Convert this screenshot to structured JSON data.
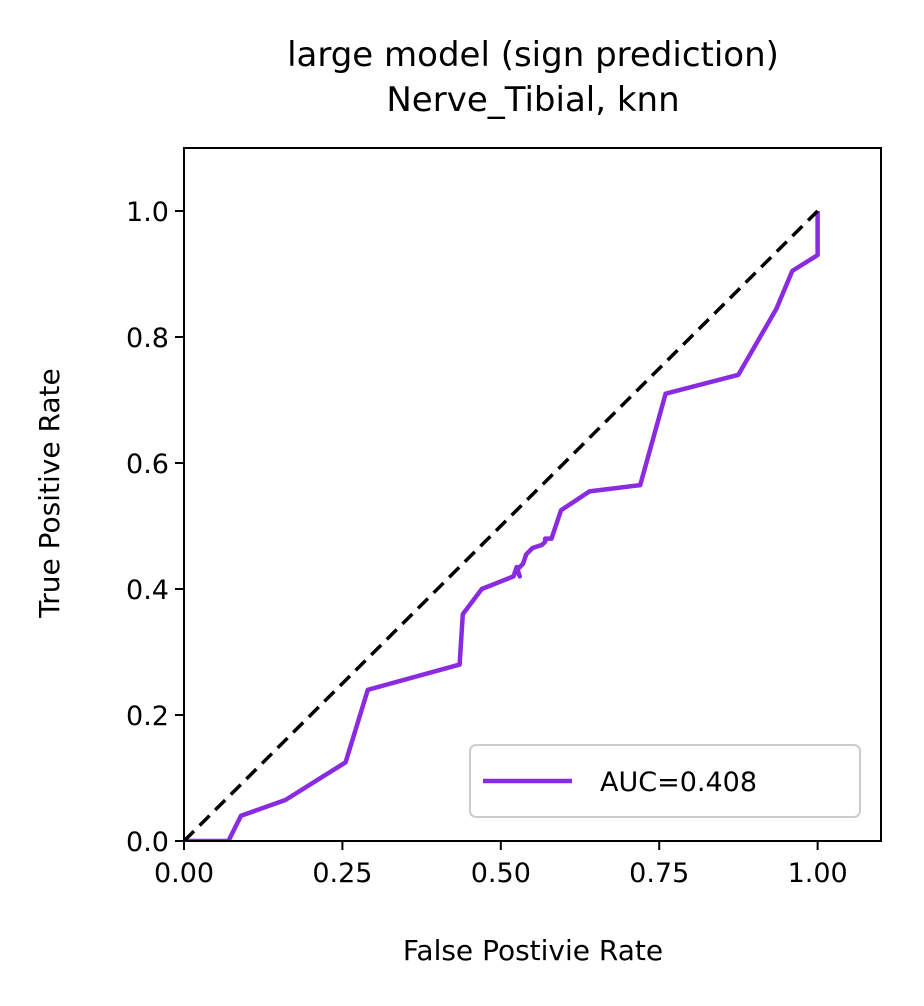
{
  "chart_data": {
    "type": "line",
    "title": "large model (sign prediction)",
    "subtitle": "Nerve_Tibial, knn",
    "xlabel": "False Postivie Rate",
    "ylabel": "True Positive Rate",
    "xlim": [
      0.0,
      1.1
    ],
    "ylim": [
      0.0,
      1.1
    ],
    "xticks": [
      0.0,
      0.25,
      0.5,
      0.75,
      1.0
    ],
    "xtick_labels": [
      "0.00",
      "0.25",
      "0.50",
      "0.75",
      "1.00"
    ],
    "yticks": [
      0.0,
      0.2,
      0.4,
      0.6,
      0.8,
      1.0
    ],
    "ytick_labels": [
      "0.0",
      "0.2",
      "0.4",
      "0.6",
      "0.8",
      "1.0"
    ],
    "grid": false,
    "legend_position": "lower right",
    "series": [
      {
        "name": "AUC=0.408",
        "color": "#8a2be2",
        "style": "solid",
        "x": [
          0.0,
          0.07,
          0.09,
          0.16,
          0.255,
          0.29,
          0.435,
          0.44,
          0.47,
          0.52,
          0.525,
          0.53,
          0.525,
          0.535,
          0.54,
          0.55,
          0.565,
          0.57,
          0.57,
          0.58,
          0.595,
          0.64,
          0.72,
          0.76,
          0.875,
          0.935,
          0.96,
          1.0,
          1.0
        ],
        "y": [
          0.0,
          0.0,
          0.04,
          0.065,
          0.125,
          0.24,
          0.28,
          0.36,
          0.4,
          0.42,
          0.435,
          0.42,
          0.43,
          0.44,
          0.455,
          0.465,
          0.47,
          0.475,
          0.48,
          0.48,
          0.525,
          0.555,
          0.565,
          0.71,
          0.74,
          0.845,
          0.905,
          0.93,
          1.0
        ]
      },
      {
        "color": "#000000",
        "style": "dashed",
        "x": [
          0.0,
          1.0
        ],
        "y": [
          0.0,
          1.0
        ]
      }
    ]
  }
}
